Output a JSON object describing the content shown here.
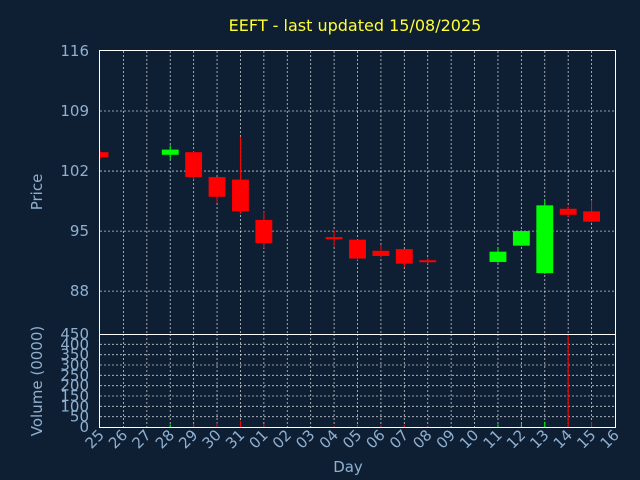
{
  "chart_data": {
    "type": "candlestick",
    "title": "EEFT - last updated 15/08/2025",
    "xlabel": "Day",
    "ylabel": "Price",
    "volume_label": "Volume (0000)",
    "categories": [
      "25",
      "26",
      "27",
      "28",
      "29",
      "30",
      "31",
      "01",
      "02",
      "03",
      "04",
      "05",
      "06",
      "07",
      "08",
      "09",
      "10",
      "11",
      "12",
      "13",
      "14",
      "15",
      "16"
    ],
    "price_ylim": [
      83,
      116
    ],
    "price_ticks": [
      88,
      95,
      102,
      109,
      116
    ],
    "volume_ylim": [
      0,
      450
    ],
    "volume_ticks": [
      0,
      50,
      100,
      150,
      200,
      250,
      300,
      350,
      400,
      450
    ],
    "up_color": "#00ff00",
    "down_color": "#ff0000",
    "grid": true,
    "candles": [
      {
        "x": "25",
        "open": 104.2,
        "close": 103.6,
        "high": 104.4,
        "low": 103.4,
        "volume": 0
      },
      {
        "x": "28",
        "open": 103.9,
        "close": 104.5,
        "high": 105.0,
        "low": 103.4,
        "volume": 12
      },
      {
        "x": "29",
        "open": 104.2,
        "close": 101.3,
        "high": 104.3,
        "low": 101.0,
        "volume": 15
      },
      {
        "x": "30",
        "open": 101.3,
        "close": 99.0,
        "high": 101.3,
        "low": 98.3,
        "volume": 18
      },
      {
        "x": "31",
        "open": 101.0,
        "close": 97.3,
        "high": 106.0,
        "low": 97.0,
        "volume": 30
      },
      {
        "x": "01",
        "open": 96.3,
        "close": 93.6,
        "high": 97.3,
        "low": 93.0,
        "volume": 14
      },
      {
        "x": "04",
        "open": 94.3,
        "close": 94.1,
        "high": 95.1,
        "low": 93.2,
        "volume": 5
      },
      {
        "x": "05",
        "open": 94.0,
        "close": 91.8,
        "high": 94.0,
        "low": 91.6,
        "volume": 12
      },
      {
        "x": "06",
        "open": 92.7,
        "close": 92.1,
        "high": 93.4,
        "low": 91.9,
        "volume": 9
      },
      {
        "x": "07",
        "open": 92.9,
        "close": 91.2,
        "high": 92.9,
        "low": 90.8,
        "volume": 11
      },
      {
        "x": "08",
        "open": 91.6,
        "close": 91.4,
        "high": 91.9,
        "low": 91.2,
        "volume": 6
      },
      {
        "x": "11",
        "open": 91.4,
        "close": 92.6,
        "high": 93.1,
        "low": 91.3,
        "volume": 13
      },
      {
        "x": "12",
        "open": 93.3,
        "close": 95.0,
        "high": 95.1,
        "low": 93.3,
        "volume": 14
      },
      {
        "x": "13",
        "open": 90.1,
        "close": 98.0,
        "high": 98.6,
        "low": 90.0,
        "volume": 25
      },
      {
        "x": "14",
        "open": 97.6,
        "close": 96.9,
        "high": 97.9,
        "low": 96.6,
        "volume": 450
      },
      {
        "x": "15",
        "open": 97.3,
        "close": 96.1,
        "high": 98.6,
        "low": 96.0,
        "volume": 25
      }
    ]
  }
}
